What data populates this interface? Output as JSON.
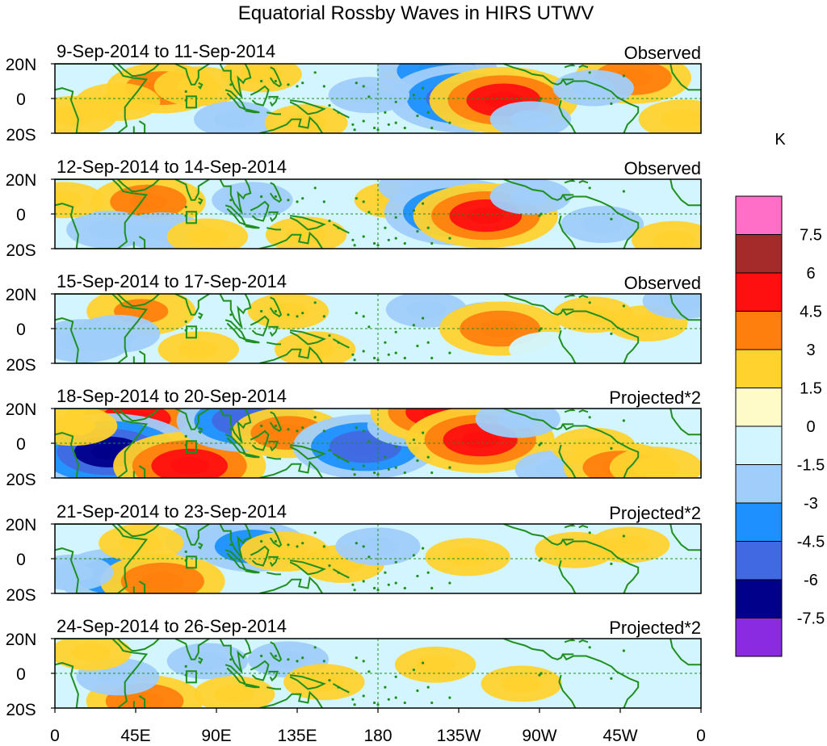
{
  "chart_data": {
    "type": "heatmap",
    "title": "Equatorial Rossby Waves in HIRS UTWV",
    "units_label": "K",
    "y_ticks": [
      "20N",
      "0",
      "20S"
    ],
    "x_ticks": [
      "0",
      "45E",
      "90E",
      "135E",
      "180",
      "135W",
      "90W",
      "45W",
      "0"
    ],
    "colorbar": {
      "labels": [
        "7.5",
        "6",
        "4.5",
        "3",
        "1.5",
        "0",
        "-1.5",
        "-3",
        "-4.5",
        "-6",
        "-7.5"
      ],
      "colors": [
        "#ff6ec7",
        "#a52a2a",
        "#ff1010",
        "#ff7f0e",
        "#ffd22e",
        "#fffbc8",
        "#d2f5ff",
        "#a0cdfa",
        "#1e90ff",
        "#4169e1",
        "#00008b",
        "#8a2be2"
      ]
    },
    "panels": [
      {
        "date_range": "9-Sep-2014 to 11-Sep-2014",
        "kind": "Observed",
        "anomalies": [
          {
            "lon": 60,
            "lat": 6,
            "v": 3.2
          },
          {
            "lon": 80,
            "lat": 7,
            "v": 2.0
          },
          {
            "lon": 35,
            "lat": -2,
            "v": 1.8
          },
          {
            "lon": 100,
            "lat": -12,
            "v": -1.6
          },
          {
            "lon": 205,
            "lat": 10,
            "v": 1.8
          },
          {
            "lon": 213,
            "lat": 16,
            "v": -3.6
          },
          {
            "lon": 228,
            "lat": 0,
            "v": -5.2
          },
          {
            "lon": 250,
            "lat": -1,
            "v": 5.0
          },
          {
            "lon": 265,
            "lat": -12,
            "v": -1.6
          },
          {
            "lon": 322,
            "lat": 12,
            "v": 3.4
          },
          {
            "lon": 300,
            "lat": 6,
            "v": -1.6
          },
          {
            "lon": 350,
            "lat": -12,
            "v": 2.0
          },
          {
            "lon": 140,
            "lat": -14,
            "v": 1.7
          },
          {
            "lon": 10,
            "lat": -10,
            "v": 2.0
          },
          {
            "lon": 175,
            "lat": 2,
            "v": -1.6
          },
          {
            "lon": 115,
            "lat": 14,
            "v": 1.6
          }
        ]
      },
      {
        "date_range": "12-Sep-2014 to 14-Sep-2014",
        "kind": "Observed",
        "anomalies": [
          {
            "lon": 52,
            "lat": 7,
            "v": 3.3
          },
          {
            "lon": 60,
            "lat": -10,
            "v": -1.8
          },
          {
            "lon": 30,
            "lat": -9,
            "v": -1.8
          },
          {
            "lon": 110,
            "lat": 8,
            "v": -1.6
          },
          {
            "lon": 190,
            "lat": 8,
            "v": 1.7
          },
          {
            "lon": 205,
            "lat": 16,
            "v": -2.0
          },
          {
            "lon": 225,
            "lat": 1,
            "v": -5.0
          },
          {
            "lon": 240,
            "lat": -1,
            "v": 4.8
          },
          {
            "lon": 265,
            "lat": 10,
            "v": -1.6
          },
          {
            "lon": 305,
            "lat": -6,
            "v": -1.7
          },
          {
            "lon": 345,
            "lat": -15,
            "v": 1.8
          },
          {
            "lon": 140,
            "lat": -12,
            "v": 1.6
          },
          {
            "lon": 85,
            "lat": -13,
            "v": 1.6
          },
          {
            "lon": 5,
            "lat": 8,
            "v": 1.6
          }
        ]
      },
      {
        "date_range": "15-Sep-2014 to 17-Sep-2014",
        "kind": "Observed",
        "anomalies": [
          {
            "lon": 48,
            "lat": 10,
            "v": 3.0
          },
          {
            "lon": 35,
            "lat": -3,
            "v": -1.8
          },
          {
            "lon": 16,
            "lat": -7,
            "v": -2.4
          },
          {
            "lon": 130,
            "lat": 10,
            "v": 1.6
          },
          {
            "lon": 145,
            "lat": -12,
            "v": 1.6
          },
          {
            "lon": 207,
            "lat": 11,
            "v": -1.6
          },
          {
            "lon": 242,
            "lat": 5,
            "v": -1.6
          },
          {
            "lon": 248,
            "lat": 0,
            "v": 3.6
          },
          {
            "lon": 275,
            "lat": -12,
            "v": -1.5
          },
          {
            "lon": 330,
            "lat": 3,
            "v": 1.6
          },
          {
            "lon": 300,
            "lat": 8,
            "v": 1.6
          },
          {
            "lon": 80,
            "lat": -12,
            "v": 1.6
          },
          {
            "lon": 350,
            "lat": 16,
            "v": -1.6
          }
        ]
      },
      {
        "date_range": "18-Sep-2014 to 20-Sep-2014",
        "kind": "Projected*2",
        "anomalies": [
          {
            "lon": 45,
            "lat": 14,
            "v": 4.6
          },
          {
            "lon": 30,
            "lat": -5,
            "v": -6.2
          },
          {
            "lon": 75,
            "lat": -13,
            "v": 5.2
          },
          {
            "lon": 107,
            "lat": 13,
            "v": -4.6
          },
          {
            "lon": 130,
            "lat": 6,
            "v": 3.2
          },
          {
            "lon": 160,
            "lat": 2,
            "v": 2.0
          },
          {
            "lon": 173,
            "lat": -2,
            "v": -4.8
          },
          {
            "lon": 200,
            "lat": 10,
            "v": -2.2
          },
          {
            "lon": 215,
            "lat": 18,
            "v": 4.6
          },
          {
            "lon": 237,
            "lat": 2,
            "v": 5.0
          },
          {
            "lon": 258,
            "lat": 14,
            "v": -1.8
          },
          {
            "lon": 280,
            "lat": -15,
            "v": -1.8
          },
          {
            "lon": 300,
            "lat": -2,
            "v": 1.8
          },
          {
            "lon": 315,
            "lat": -14,
            "v": 3.2
          },
          {
            "lon": 335,
            "lat": -14,
            "v": 2.2
          },
          {
            "lon": 10,
            "lat": 10,
            "v": 2.0
          }
        ]
      },
      {
        "date_range": "21-Sep-2014 to 23-Sep-2014",
        "kind": "Projected*2",
        "anomalies": [
          {
            "lon": 35,
            "lat": -10,
            "v": -3.8
          },
          {
            "lon": 60,
            "lat": -13,
            "v": 3.8
          },
          {
            "lon": 85,
            "lat": 10,
            "v": -1.8
          },
          {
            "lon": 48,
            "lat": 9,
            "v": 1.8
          },
          {
            "lon": 110,
            "lat": 7,
            "v": -3.2
          },
          {
            "lon": 128,
            "lat": 4,
            "v": 2.0
          },
          {
            "lon": 160,
            "lat": -3,
            "v": 1.8
          },
          {
            "lon": 180,
            "lat": 7,
            "v": -1.8
          },
          {
            "lon": 230,
            "lat": 1,
            "v": 1.8
          },
          {
            "lon": 290,
            "lat": 5,
            "v": 1.6
          },
          {
            "lon": 320,
            "lat": 8,
            "v": 1.6
          },
          {
            "lon": 10,
            "lat": -8,
            "v": -1.6
          }
        ]
      },
      {
        "date_range": "24-Sep-2014 to 26-Sep-2014",
        "kind": "Projected*2",
        "anomalies": [
          {
            "lon": 50,
            "lat": -16,
            "v": 3.4
          },
          {
            "lon": 35,
            "lat": -2,
            "v": -1.7
          },
          {
            "lon": 85,
            "lat": 7,
            "v": -1.6
          },
          {
            "lon": 100,
            "lat": -12,
            "v": 1.6
          },
          {
            "lon": 130,
            "lat": 8,
            "v": -1.6
          },
          {
            "lon": 150,
            "lat": -5,
            "v": 1.6
          },
          {
            "lon": 212,
            "lat": 5,
            "v": 1.6
          },
          {
            "lon": 260,
            "lat": -6,
            "v": 1.6
          },
          {
            "lon": 20,
            "lat": 12,
            "v": 1.6
          }
        ]
      }
    ]
  }
}
